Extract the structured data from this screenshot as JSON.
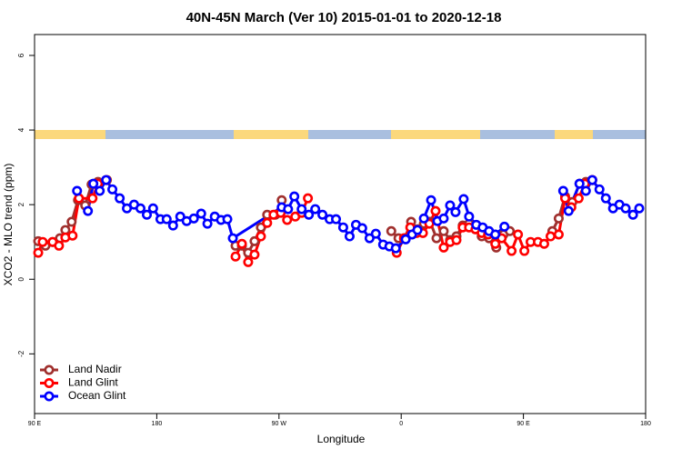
{
  "chart_data": {
    "type": "line",
    "title": "40N-45N March (Ver 10)   2015-01-01 to 2020-12-18",
    "x_label": "Longitude",
    "y_label": "XCO2 - MLO trend (ppm)",
    "xlim": [
      90,
      540
    ],
    "xticks": [
      {
        "value": 90,
        "label": "90 E"
      },
      180,
      {
        "value": 270,
        "label": "90 W"
      },
      {
        "value": 360,
        "label": "0"
      },
      {
        "value": 450,
        "label": "90 E"
      },
      {
        "value": 540,
        "label": "180"
      }
    ],
    "ylim": [
      -3.6,
      6.56
    ],
    "yticks": [
      -2,
      0,
      2,
      4,
      6
    ],
    "legend": "bottom-left",
    "series": [
      {
        "name": "Land Nadir",
        "color": "#a0302e",
        "x": [
          92.7,
          98,
          103.3,
          108.7,
          112.7,
          117.3,
          122,
          127.3,
          132,
          136.7,
          143.3,
          null,
          238,
          242.7,
          247.3,
          252,
          256.7,
          261.3,
          267.3,
          272,
          null,
          352.7,
          358,
          362.7,
          367.3,
          372,
          376.7,
          381.3,
          386,
          391.3,
          396,
          400.7,
          405.3,
          410,
          414.7,
          419.3,
          424.7,
          430,
          435.3,
          440,
          null,
          471.3,
          476,
          480.7,
          486,
          491.3,
          496,
          500.7
        ],
        "values": [
          1.02,
          0.9,
          1.0,
          1.1,
          1.32,
          1.54,
          2.12,
          1.98,
          2.54,
          2.61,
          2.66,
          null,
          0.9,
          0.9,
          0.71,
          1.02,
          1.39,
          1.73,
          1.73,
          2.12,
          null,
          1.29,
          1.1,
          1.1,
          1.54,
          1.34,
          1.49,
          1.54,
          1.1,
          1.29,
          1.05,
          1.15,
          1.44,
          1.49,
          1.34,
          1.15,
          1.1,
          0.85,
          1.2,
          1.29,
          null,
          1.29,
          1.63,
          2.22,
          2.07,
          2.56,
          2.61,
          2.66
        ]
      },
      {
        "name": "Land Glint",
        "color": "#ff0000",
        "x": [
          92.7,
          96,
          103.3,
          108,
          112.7,
          118,
          122.7,
          132.7,
          136.7,
          142.7,
          null,
          238,
          242.7,
          247.3,
          252,
          256.7,
          261.3,
          266,
          271.3,
          276,
          282,
          286.7,
          291.3,
          null,
          356.7,
          362,
          366.7,
          371.3,
          376,
          380.7,
          385.3,
          391.3,
          396,
          400.7,
          405.3,
          410,
          414.7,
          419.3,
          424,
          429.3,
          434,
          441.3,
          446,
          450.7,
          455.3,
          460.7,
          465.3,
          470,
          476,
          480.7,
          485.3,
          490.7,
          495.3,
          500.7
        ],
        "values": [
          0.71,
          1.0,
          1.0,
          0.9,
          1.12,
          1.17,
          2.17,
          2.17,
          2.56,
          2.66,
          null,
          0.61,
          0.95,
          0.46,
          0.66,
          1.15,
          1.51,
          1.73,
          1.78,
          1.59,
          1.68,
          1.78,
          2.17,
          null,
          0.71,
          1.1,
          1.39,
          1.24,
          1.24,
          1.49,
          1.83,
          0.85,
          1.0,
          1.05,
          1.39,
          1.39,
          1.34,
          1.24,
          1.2,
          0.95,
          1.1,
          0.76,
          1.2,
          0.76,
          1.0,
          1.0,
          0.95,
          1.15,
          1.2,
          2.17,
          1.93,
          2.17,
          2.56,
          2.66
        ]
      },
      {
        "name": "Ocean Glint",
        "color": "#0000ff",
        "x": [
          121.3,
          129.3,
          133.3,
          138,
          142.7,
          147.3,
          152.7,
          158,
          163.3,
          168,
          172.7,
          177.3,
          182.7,
          187.3,
          192,
          197.3,
          202,
          207.3,
          212.7,
          217.3,
          222.7,
          227.3,
          232,
          236,
          272,
          276.7,
          281.3,
          286.7,
          292,
          296.7,
          302,
          307.3,
          312,
          317.3,
          322,
          326.7,
          331.3,
          336.7,
          341.3,
          346.7,
          351.3,
          356,
          363.3,
          368,
          372,
          376.7,
          382,
          386.7,
          391.3,
          396,
          400,
          406,
          410,
          415.3,
          420,
          424.7,
          429.3,
          436,
          null,
          479.3,
          483.3,
          491.3,
          496,
          500.7,
          506,
          510.7,
          516,
          520.7,
          525.3,
          530.7,
          535.3
        ],
        "values": [
          2.37,
          1.83,
          2.56,
          2.37,
          2.66,
          2.41,
          2.17,
          1.9,
          2.0,
          1.9,
          1.73,
          1.9,
          1.61,
          1.61,
          1.44,
          1.68,
          1.56,
          1.63,
          1.76,
          1.49,
          1.68,
          1.59,
          1.61,
          1.1,
          1.93,
          1.88,
          2.22,
          1.88,
          1.73,
          1.88,
          1.73,
          1.61,
          1.61,
          1.39,
          1.15,
          1.46,
          1.37,
          1.1,
          1.22,
          0.93,
          0.88,
          0.83,
          1.07,
          1.2,
          1.32,
          1.63,
          2.12,
          1.56,
          1.63,
          1.98,
          1.8,
          2.15,
          1.68,
          1.46,
          1.39,
          1.29,
          1.2,
          1.41,
          null,
          2.37,
          1.83,
          2.56,
          2.37,
          2.66,
          2.41,
          2.17,
          1.9,
          2.0,
          1.9,
          1.73,
          1.9
        ]
      }
    ]
  }
}
